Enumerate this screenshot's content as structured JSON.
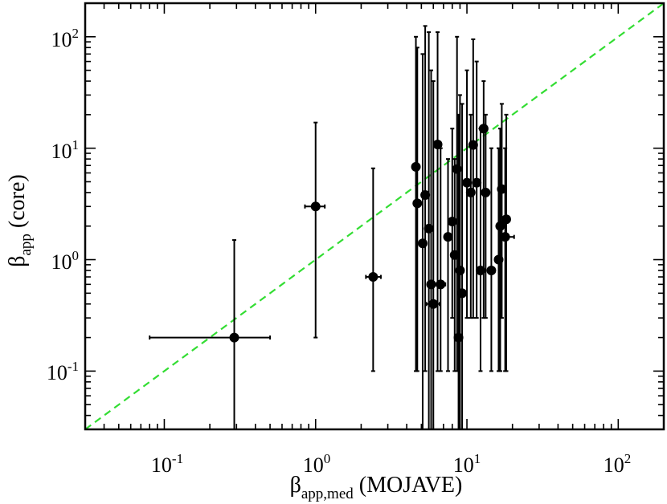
{
  "chart_data": {
    "type": "scatter",
    "title": "",
    "x_scale": "log",
    "y_scale": "log",
    "xlim": [
      0.03,
      200
    ],
    "ylim": [
      0.03,
      200
    ],
    "xlabel_symbol": "β",
    "xlabel_sub": "app,med",
    "xlabel_text": " (MOJAVE)",
    "ylabel_symbol": "β",
    "ylabel_sub": "app",
    "ylabel_text": " (core)",
    "tick_labels": [
      {
        "base": "10",
        "exp": "-1"
      },
      {
        "base": "10",
        "exp": "0"
      },
      {
        "base": "10",
        "exp": "1"
      },
      {
        "base": "10",
        "exp": "2"
      }
    ],
    "tick_values": [
      0.1,
      1,
      10,
      100
    ],
    "grid": false,
    "reference_line": {
      "style": "dashed",
      "color": "#33dd33",
      "relation": "y = x"
    },
    "marker_color": "#000000",
    "points": [
      {
        "x": 0.29,
        "y": 0.2,
        "xerr": [
          0.08,
          0.5
        ],
        "yerr": [
          0.03,
          1.5
        ]
      },
      {
        "x": 1.0,
        "y": 3.0,
        "xerr": [
          0.85,
          1.15
        ],
        "yerr": [
          0.2,
          17
        ]
      },
      {
        "x": 2.4,
        "y": 0.7,
        "xerr": [
          2.15,
          2.7
        ],
        "yerr": [
          0.1,
          6.6
        ]
      },
      {
        "x": 4.6,
        "y": 6.8,
        "xerr": [
          4.45,
          4.75
        ],
        "yerr": [
          0.1,
          100
        ]
      },
      {
        "x": 4.7,
        "y": 3.2,
        "xerr": [
          4.55,
          4.85
        ],
        "yerr": [
          0.1,
          80
        ]
      },
      {
        "x": 5.1,
        "y": 1.4,
        "xerr": [
          4.95,
          5.25
        ],
        "yerr": [
          0.03,
          70
        ]
      },
      {
        "x": 5.3,
        "y": 3.8,
        "xerr": [
          5.1,
          5.5
        ],
        "yerr": [
          0.1,
          125
        ]
      },
      {
        "x": 5.6,
        "y": 1.9,
        "xerr": [
          5.4,
          5.8
        ],
        "yerr": [
          0.03,
          110
        ]
      },
      {
        "x": 5.8,
        "y": 0.6,
        "xerr": [
          5.6,
          6.0
        ],
        "yerr": [
          0.03,
          50
        ]
      },
      {
        "x": 6.0,
        "y": 0.4,
        "xerr": [
          5.4,
          6.6
        ],
        "yerr": [
          0.03,
          40
        ]
      },
      {
        "x": 6.4,
        "y": 10.8,
        "xerr": [
          6.2,
          6.6
        ],
        "yerr": [
          0.1,
          110
        ]
      },
      {
        "x": 6.7,
        "y": 0.6,
        "xerr": [
          6.3,
          7.2
        ],
        "yerr": [
          0.1,
          10
        ]
      },
      {
        "x": 7.5,
        "y": 1.6,
        "xerr": [
          7.3,
          7.7
        ],
        "yerr": [
          0.1,
          8
        ]
      },
      {
        "x": 8.0,
        "y": 2.2,
        "xerr": [
          7.8,
          8.2
        ],
        "yerr": [
          0.3,
          15
        ]
      },
      {
        "x": 8.3,
        "y": 1.1,
        "xerr": [
          8.1,
          8.5
        ],
        "yerr": [
          0.1,
          8
        ]
      },
      {
        "x": 8.6,
        "y": 6.5,
        "xerr": [
          8.4,
          8.8
        ],
        "yerr": [
          0.1,
          100
        ]
      },
      {
        "x": 8.8,
        "y": 0.2,
        "xerr": [
          8.4,
          9.2
        ],
        "yerr": [
          0.03,
          20
        ]
      },
      {
        "x": 9.0,
        "y": 0.8,
        "xerr": [
          8.8,
          9.2
        ],
        "yerr": [
          0.03,
          30
        ]
      },
      {
        "x": 9.3,
        "y": 0.5,
        "xerr": [
          9.0,
          9.6
        ],
        "yerr": [
          0.03,
          25
        ]
      },
      {
        "x": 10.0,
        "y": 4.9,
        "xerr": [
          9.7,
          10.3
        ],
        "yerr": [
          0.3,
          50
        ]
      },
      {
        "x": 10.6,
        "y": 4.0,
        "xerr": [
          10.3,
          10.9
        ],
        "yerr": [
          0.3,
          20
        ]
      },
      {
        "x": 11.0,
        "y": 10.7,
        "xerr": [
          10.6,
          11.4
        ],
        "yerr": [
          0.3,
          95
        ]
      },
      {
        "x": 11.6,
        "y": 4.9,
        "xerr": [
          11.2,
          12.0
        ],
        "yerr": [
          0.3,
          60
        ]
      },
      {
        "x": 12.3,
        "y": 0.8,
        "xerr": [
          11.9,
          12.7
        ],
        "yerr": [
          0.1,
          15
        ]
      },
      {
        "x": 12.9,
        "y": 15.0,
        "xerr": [
          12.5,
          13.3
        ],
        "yerr": [
          0.3,
          40
        ]
      },
      {
        "x": 13.3,
        "y": 4.0,
        "xerr": [
          12.9,
          13.7
        ],
        "yerr": [
          0.3,
          20
        ]
      },
      {
        "x": 14.5,
        "y": 0.8,
        "xerr": [
          14.0,
          15.0
        ],
        "yerr": [
          0.1,
          10
        ]
      },
      {
        "x": 16.2,
        "y": 1.0,
        "xerr": [
          15.6,
          16.8
        ],
        "yerr": [
          0.1,
          10
        ]
      },
      {
        "x": 16.6,
        "y": 2.0,
        "xerr": [
          16.0,
          17.2
        ],
        "yerr": [
          0.1,
          15
        ]
      },
      {
        "x": 17.0,
        "y": 4.3,
        "xerr": [
          16.4,
          17.6
        ],
        "yerr": [
          0.3,
          25
        ]
      },
      {
        "x": 17.9,
        "y": 1.6,
        "xerr": [
          17.0,
          20.5
        ],
        "yerr": [
          0.1,
          10
        ]
      },
      {
        "x": 18.2,
        "y": 2.3,
        "xerr": [
          17.6,
          18.8
        ],
        "yerr": [
          0.1,
          20
        ]
      }
    ]
  }
}
